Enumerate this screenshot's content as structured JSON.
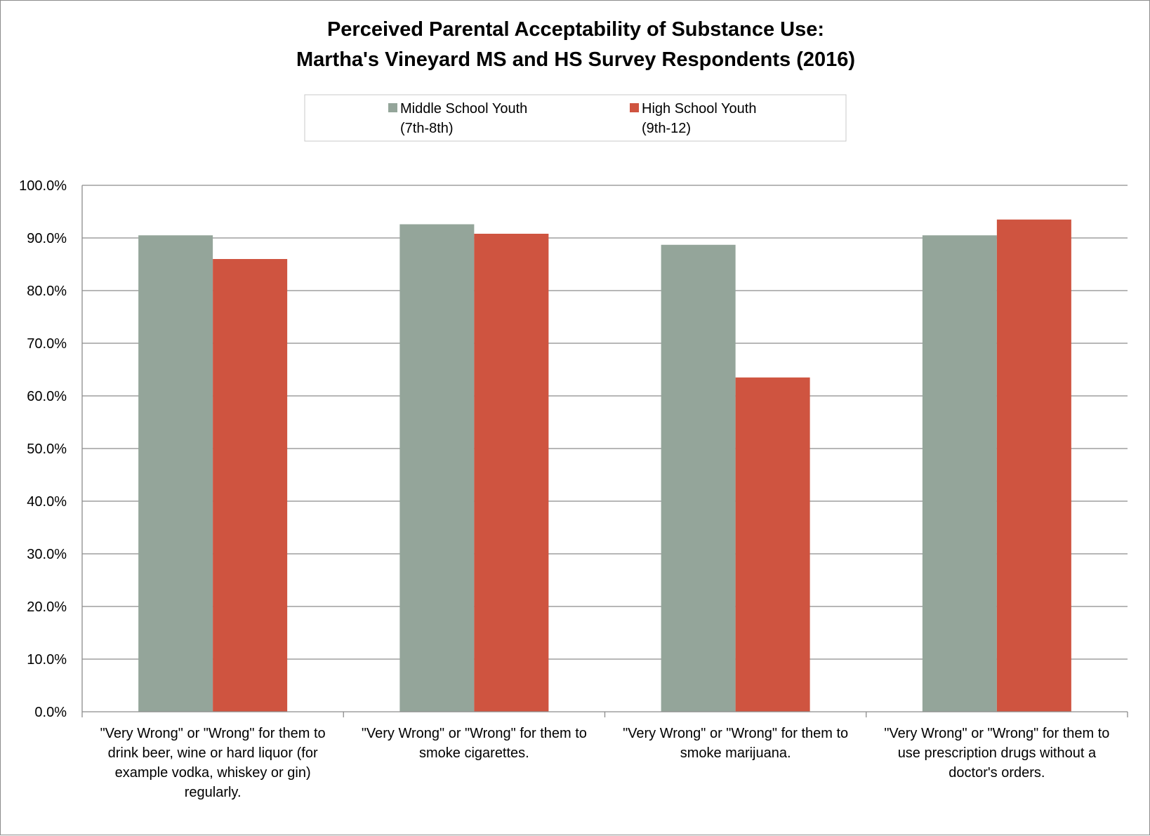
{
  "chart_data": {
    "type": "bar",
    "title": "Perceived Parental Acceptability of Substance Use:",
    "subtitle": "Martha's Vineyard MS and HS Survey Respondents (2016)",
    "categories": [
      [
        "\"Very Wrong\" or \"Wrong\" for them to",
        "drink beer, wine or hard liquor (for",
        "example vodka, whiskey or gin)",
        "regularly."
      ],
      [
        "\"Very Wrong\" or \"Wrong\" for them to",
        "smoke cigarettes."
      ],
      [
        "\"Very Wrong\" or \"Wrong\" for them to",
        "smoke marijuana."
      ],
      [
        "\"Very Wrong\" or \"Wrong\" for them to",
        "use prescription drugs without a",
        "doctor's orders."
      ]
    ],
    "series": [
      {
        "name": [
          "Middle School Youth",
          "(7th-8th)"
        ],
        "color": "#94a59a",
        "values": [
          90.5,
          92.6,
          88.7,
          90.5
        ]
      },
      {
        "name": [
          "High School Youth",
          "(9th-12)"
        ],
        "color": "#cf5440",
        "values": [
          86.0,
          90.8,
          63.5,
          93.5
        ]
      }
    ],
    "ylim": [
      0,
      100
    ],
    "y_ticks": [
      "0.0%",
      "10.0%",
      "20.0%",
      "30.0%",
      "40.0%",
      "50.0%",
      "60.0%",
      "70.0%",
      "80.0%",
      "90.0%",
      "100.0%"
    ],
    "xlabel": "",
    "ylabel": "",
    "grid": true,
    "legend_position": "top"
  }
}
